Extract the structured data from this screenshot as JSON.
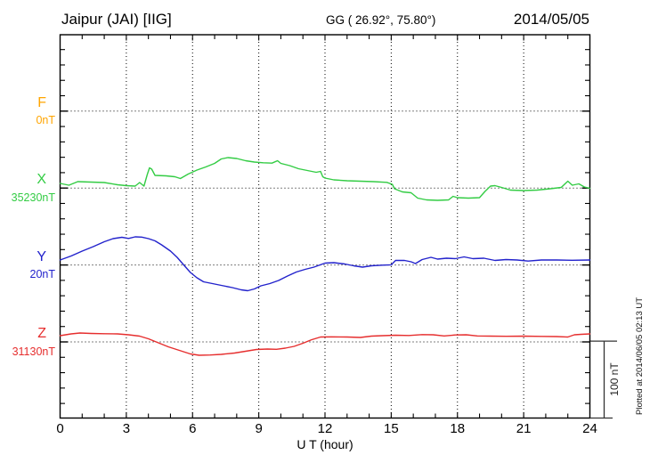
{
  "header": {
    "title": "Jaipur (JAI)  [IIG]",
    "coords": "GG ( 26.92°,  75.80°)",
    "date": "2014/05/05"
  },
  "chart_data": {
    "type": "line",
    "title": "Jaipur (JAI)  [IIG]",
    "subtitle": "GG ( 26.92°,  75.80°)",
    "date": "2014/05/05",
    "xlabel": "U T (hour)",
    "x_range": [
      0,
      24
    ],
    "x_ticks": [
      0,
      3,
      6,
      9,
      12,
      15,
      18,
      21,
      24
    ],
    "grid": "dotted 3-hour verticals and component baselines",
    "minor_tick_nT": 20,
    "scale_bar": {
      "label": "100 nT",
      "nT": 100
    },
    "footer_note": "Plotted at 2014/06/05 02:13 UT",
    "axis_color": "#000000",
    "series": [
      {
        "name": "F",
        "color": "#FFA500",
        "baseline_label": "0nT",
        "baseline_nT": 0,
        "points": []
      },
      {
        "name": "X",
        "color": "#33CC44",
        "baseline_label": "35230nT",
        "baseline_nT": 35230,
        "points": [
          [
            0,
            6
          ],
          [
            0.4,
            3.7
          ],
          [
            0.8,
            8.3
          ],
          [
            1.4,
            7.8
          ],
          [
            2,
            7.2
          ],
          [
            2.6,
            4.3
          ],
          [
            3,
            3.1
          ],
          [
            3.4,
            2.5
          ],
          [
            3.6,
            7.2
          ],
          [
            3.8,
            2.5
          ],
          [
            3.95,
            17.6
          ],
          [
            4.05,
            26.3
          ],
          [
            4.15,
            24.5
          ],
          [
            4.3,
            16.4
          ],
          [
            4.8,
            15.9
          ],
          [
            5.2,
            14.7
          ],
          [
            5.45,
            12.4
          ],
          [
            5.8,
            18.2
          ],
          [
            6.2,
            23.4
          ],
          [
            6.6,
            27.4
          ],
          [
            7,
            32.1
          ],
          [
            7.3,
            37.8
          ],
          [
            7.6,
            39.6
          ],
          [
            8,
            38.4
          ],
          [
            8.4,
            35.5
          ],
          [
            8.8,
            33.8
          ],
          [
            9.2,
            32.9
          ],
          [
            9.6,
            32.4
          ],
          [
            9.85,
            35.5
          ],
          [
            10,
            32.1
          ],
          [
            10.4,
            29.2
          ],
          [
            10.8,
            25.1
          ],
          [
            11.2,
            22.8
          ],
          [
            11.6,
            20.5
          ],
          [
            11.8,
            21.6
          ],
          [
            11.9,
            14.7
          ],
          [
            12,
            13
          ],
          [
            12.4,
            10.6
          ],
          [
            13,
            9.5
          ],
          [
            13.6,
            8.9
          ],
          [
            14.2,
            8.3
          ],
          [
            14.8,
            7.4
          ],
          [
            15.05,
            4.9
          ],
          [
            15.15,
            -0.9
          ],
          [
            15.5,
            -5
          ],
          [
            15.9,
            -6.1
          ],
          [
            16.2,
            -13.1
          ],
          [
            16.6,
            -15.4
          ],
          [
            17.1,
            -16
          ],
          [
            17.6,
            -15.4
          ],
          [
            17.8,
            -10.8
          ],
          [
            18,
            -12.5
          ],
          [
            18.5,
            -13.1
          ],
          [
            19,
            -12.5
          ],
          [
            19.25,
            -4.4
          ],
          [
            19.5,
            2.5
          ],
          [
            19.7,
            3.1
          ],
          [
            20,
            0.8
          ],
          [
            20.4,
            -2.7
          ],
          [
            21,
            -3.2
          ],
          [
            21.6,
            -2.7
          ],
          [
            22.2,
            -0.9
          ],
          [
            22.7,
            0.8
          ],
          [
            23,
            8.9
          ],
          [
            23.2,
            3.7
          ],
          [
            23.5,
            5.4
          ],
          [
            23.75,
            1.4
          ],
          [
            24,
            -0.3
          ]
        ]
      },
      {
        "name": "Y",
        "color": "#2222CC",
        "baseline_label": "20nT",
        "baseline_nT": 20,
        "points": [
          [
            0,
            6.5
          ],
          [
            0.5,
            11.7
          ],
          [
            1,
            18.1
          ],
          [
            1.5,
            23.8
          ],
          [
            2,
            30.2
          ],
          [
            2.4,
            34.3
          ],
          [
            2.8,
            36
          ],
          [
            3.1,
            34.5
          ],
          [
            3.4,
            36.6
          ],
          [
            3.7,
            36.2
          ],
          [
            4,
            34.3
          ],
          [
            4.3,
            31.4
          ],
          [
            4.6,
            26.2
          ],
          [
            5,
            18.1
          ],
          [
            5.3,
            10
          ],
          [
            5.6,
            0.1
          ],
          [
            5.9,
            -9.7
          ],
          [
            6.2,
            -16.7
          ],
          [
            6.5,
            -21.9
          ],
          [
            6.9,
            -24.2
          ],
          [
            7.3,
            -26.5
          ],
          [
            7.8,
            -29.4
          ],
          [
            8.2,
            -32.3
          ],
          [
            8.5,
            -33.5
          ],
          [
            8.8,
            -31.1
          ],
          [
            9.1,
            -27.1
          ],
          [
            9.5,
            -24.2
          ],
          [
            9.9,
            -20.1
          ],
          [
            10.3,
            -14.4
          ],
          [
            10.7,
            -9.1
          ],
          [
            11.1,
            -5.7
          ],
          [
            11.5,
            -2.8
          ],
          [
            12,
            2.4
          ],
          [
            12.4,
            3
          ],
          [
            12.9,
            1.3
          ],
          [
            13.3,
            -1
          ],
          [
            13.7,
            -2.8
          ],
          [
            14.1,
            -1
          ],
          [
            14.6,
            -0.2
          ],
          [
            15,
            0.2
          ],
          [
            15.2,
            5.9
          ],
          [
            15.6,
            5.9
          ],
          [
            15.9,
            4.2
          ],
          [
            16.1,
            1.9
          ],
          [
            16.4,
            7.1
          ],
          [
            16.8,
            10
          ],
          [
            17.1,
            7.6
          ],
          [
            17.5,
            8.8
          ],
          [
            17.9,
            8.2
          ],
          [
            18.3,
            10.5
          ],
          [
            18.7,
            8.2
          ],
          [
            19.2,
            8.8
          ],
          [
            19.7,
            5.9
          ],
          [
            20.2,
            7.1
          ],
          [
            20.7,
            6.5
          ],
          [
            21.2,
            5.1
          ],
          [
            21.8,
            6.5
          ],
          [
            22.5,
            6.5
          ],
          [
            23.2,
            6.1
          ],
          [
            24,
            6.5
          ]
        ]
      },
      {
        "name": "Z",
        "color": "#E62E2E",
        "baseline_label": "31130nT",
        "baseline_nT": 31130,
        "points": [
          [
            0,
            8.1
          ],
          [
            0.5,
            10.4
          ],
          [
            0.9,
            11.6
          ],
          [
            1.4,
            11
          ],
          [
            2,
            10.6
          ],
          [
            2.6,
            10.4
          ],
          [
            3.1,
            9.3
          ],
          [
            3.6,
            7.5
          ],
          [
            4,
            4.1
          ],
          [
            4.4,
            -0.6
          ],
          [
            4.9,
            -6.4
          ],
          [
            5.4,
            -11
          ],
          [
            5.9,
            -15.6
          ],
          [
            6.3,
            -17.4
          ],
          [
            6.8,
            -17
          ],
          [
            7.3,
            -16.2
          ],
          [
            7.9,
            -14.5
          ],
          [
            8.4,
            -12.2
          ],
          [
            8.9,
            -9.8
          ],
          [
            9.4,
            -9.3
          ],
          [
            9.8,
            -9.6
          ],
          [
            10.2,
            -8.1
          ],
          [
            10.6,
            -5.8
          ],
          [
            11,
            -1.7
          ],
          [
            11.4,
            2.9
          ],
          [
            11.8,
            6.4
          ],
          [
            12.3,
            6.6
          ],
          [
            13,
            6.4
          ],
          [
            13.6,
            5.8
          ],
          [
            14.1,
            7.5
          ],
          [
            14.6,
            8.1
          ],
          [
            15.2,
            8.7
          ],
          [
            15.8,
            8.3
          ],
          [
            16.4,
            9.5
          ],
          [
            16.9,
            9.3
          ],
          [
            17.4,
            7.8
          ],
          [
            17.9,
            9
          ],
          [
            18.4,
            9.3
          ],
          [
            18.9,
            7.8
          ],
          [
            19.5,
            7.5
          ],
          [
            20.2,
            7.3
          ],
          [
            21,
            7.5
          ],
          [
            21.8,
            7.2
          ],
          [
            22.5,
            6.9
          ],
          [
            23,
            6.4
          ],
          [
            23.3,
            9.3
          ],
          [
            23.6,
            9.8
          ],
          [
            24,
            10.4
          ]
        ]
      }
    ]
  }
}
